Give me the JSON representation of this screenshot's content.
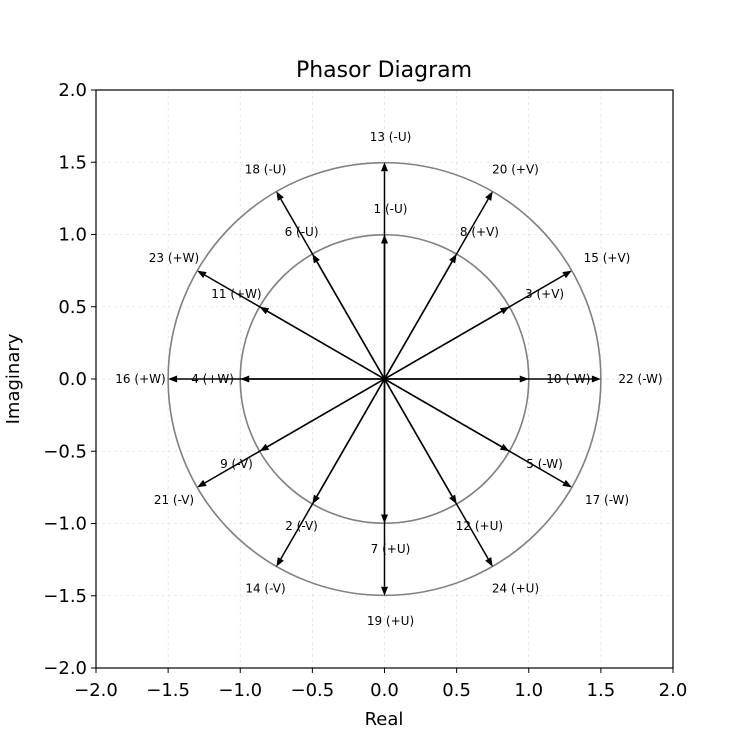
{
  "chart_data": {
    "type": "scatter",
    "subtype": "phasor",
    "title": "Phasor Diagram",
    "xlabel": "Real",
    "ylabel": "Imaginary",
    "xlim": [
      -2.0,
      2.0
    ],
    "ylim": [
      -2.0,
      2.0
    ],
    "xticks": [
      -2.0,
      -1.5,
      -1.0,
      -0.5,
      0.0,
      0.5,
      1.0,
      1.5,
      2.0
    ],
    "yticks": [
      -2.0,
      -1.5,
      -1.0,
      -0.5,
      0.0,
      0.5,
      1.0,
      1.5,
      2.0
    ],
    "xtick_labels": [
      "−2.0",
      "−1.5",
      "−1.0",
      "−0.5",
      "0.0",
      "0.5",
      "1.0",
      "1.5",
      "2.0"
    ],
    "ytick_labels": [
      "−2.0",
      "−1.5",
      "−1.0",
      "−0.5",
      "0.0",
      "0.5",
      "1.0",
      "1.5",
      "2.0"
    ],
    "grid": true,
    "circles": [
      1.0,
      1.5
    ],
    "phasors": [
      {
        "label": "1 (-U)",
        "magnitude": 1.0,
        "angle_deg": 90
      },
      {
        "label": "2 (-V)",
        "magnitude": 1.0,
        "angle_deg": 240
      },
      {
        "label": "3 (+V)",
        "magnitude": 1.0,
        "angle_deg": 30
      },
      {
        "label": "4 (+W)",
        "magnitude": 1.0,
        "angle_deg": 180
      },
      {
        "label": "5 (-W)",
        "magnitude": 1.0,
        "angle_deg": 330
      },
      {
        "label": "6 (-U)",
        "magnitude": 1.0,
        "angle_deg": 120
      },
      {
        "label": "7 (+U)",
        "magnitude": 1.0,
        "angle_deg": 270
      },
      {
        "label": "8 (+V)",
        "magnitude": 1.0,
        "angle_deg": 60
      },
      {
        "label": "9 (-V)",
        "magnitude": 1.0,
        "angle_deg": 210
      },
      {
        "label": "10 (-W)",
        "magnitude": 1.0,
        "angle_deg": 0
      },
      {
        "label": "11 (+W)",
        "magnitude": 1.0,
        "angle_deg": 150
      },
      {
        "label": "12 (+U)",
        "magnitude": 1.0,
        "angle_deg": 300
      },
      {
        "label": "13 (-U)",
        "magnitude": 1.5,
        "angle_deg": 90
      },
      {
        "label": "14 (-V)",
        "magnitude": 1.5,
        "angle_deg": 240
      },
      {
        "label": "15 (+V)",
        "magnitude": 1.5,
        "angle_deg": 30
      },
      {
        "label": "16 (+W)",
        "magnitude": 1.5,
        "angle_deg": 180
      },
      {
        "label": "17 (-W)",
        "magnitude": 1.5,
        "angle_deg": 330
      },
      {
        "label": "18 (-U)",
        "magnitude": 1.5,
        "angle_deg": 120
      },
      {
        "label": "19 (+U)",
        "magnitude": 1.5,
        "angle_deg": 270
      },
      {
        "label": "20 (+V)",
        "magnitude": 1.5,
        "angle_deg": 60
      },
      {
        "label": "21 (-V)",
        "magnitude": 1.5,
        "angle_deg": 210
      },
      {
        "label": "22 (-W)",
        "magnitude": 1.5,
        "angle_deg": 0
      },
      {
        "label": "23 (+W)",
        "magnitude": 1.5,
        "angle_deg": 150
      },
      {
        "label": "24 (+U)",
        "magnitude": 1.5,
        "angle_deg": 300
      }
    ]
  }
}
